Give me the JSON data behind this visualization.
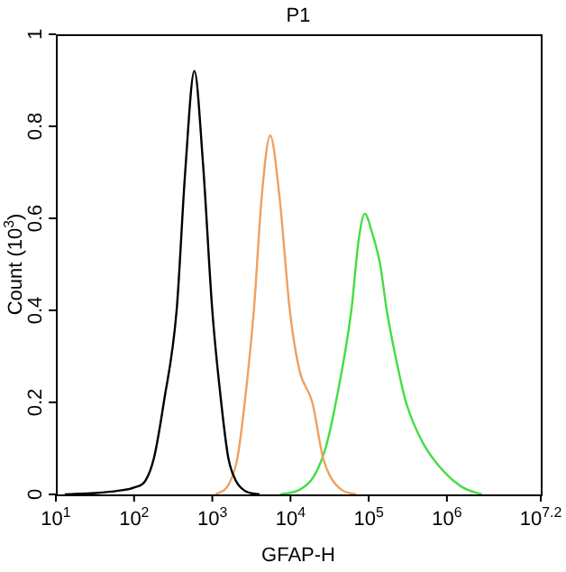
{
  "chart_data": {
    "type": "line",
    "title": "P1",
    "xlabel": "GFAP-H",
    "ylabel": "Count (10$^{3}$)",
    "log": "x",
    "grid": false,
    "legend": false,
    "marker": "none",
    "line_style": "solid",
    "xlim": [
      10,
      15848932
    ],
    "xticks": [
      {
        "value": 10,
        "label": "10$^{1}$"
      },
      {
        "value": 100,
        "label": "10$^{2}$"
      },
      {
        "value": 1000,
        "label": "10$^{3}$"
      },
      {
        "value": 10000,
        "label": "10$^{4}$"
      },
      {
        "value": 100000,
        "label": "10$^{5}$"
      },
      {
        "value": 1000000,
        "label": "10$^{6}$"
      },
      {
        "value": 15848932,
        "label": "10$^{7.2}$"
      }
    ],
    "ylim": [
      0,
      1
    ],
    "yticks": [
      0,
      0.2,
      0.4,
      0.6,
      0.8,
      1
    ],
    "series": [
      {
        "color": "#000000",
        "x": [
          13,
          32,
          63,
          100,
          140,
          180,
          240,
          350,
          450,
          590,
          760,
          1000,
          1300,
          1600,
          2000,
          2600,
          4000
        ],
        "values": [
          0,
          0.003,
          0.008,
          0.015,
          0.03,
          0.08,
          0.2,
          0.4,
          0.7,
          0.92,
          0.72,
          0.4,
          0.2,
          0.08,
          0.03,
          0.008,
          0
        ]
      },
      {
        "color": "#f0a060",
        "x": [
          1100,
          1600,
          2100,
          2600,
          3400,
          4300,
          5500,
          7200,
          9800,
          13000,
          19000,
          26000,
          32000,
          45000,
          69000
        ],
        "values": [
          0,
          0.02,
          0.08,
          0.2,
          0.4,
          0.65,
          0.78,
          0.65,
          0.4,
          0.27,
          0.2,
          0.08,
          0.04,
          0.01,
          0
        ]
      },
      {
        "color": "#44dd44",
        "x": [
          7400,
          13000,
          20000,
          28000,
          38000,
          60000,
          74000,
          89000,
          110000,
          140000,
          170000,
          220000,
          300000,
          500000,
          910000,
          1600000,
          2800000
        ],
        "values": [
          0,
          0.01,
          0.04,
          0.1,
          0.2,
          0.4,
          0.55,
          0.61,
          0.57,
          0.5,
          0.4,
          0.3,
          0.2,
          0.11,
          0.05,
          0.015,
          0
        ]
      }
    ]
  }
}
